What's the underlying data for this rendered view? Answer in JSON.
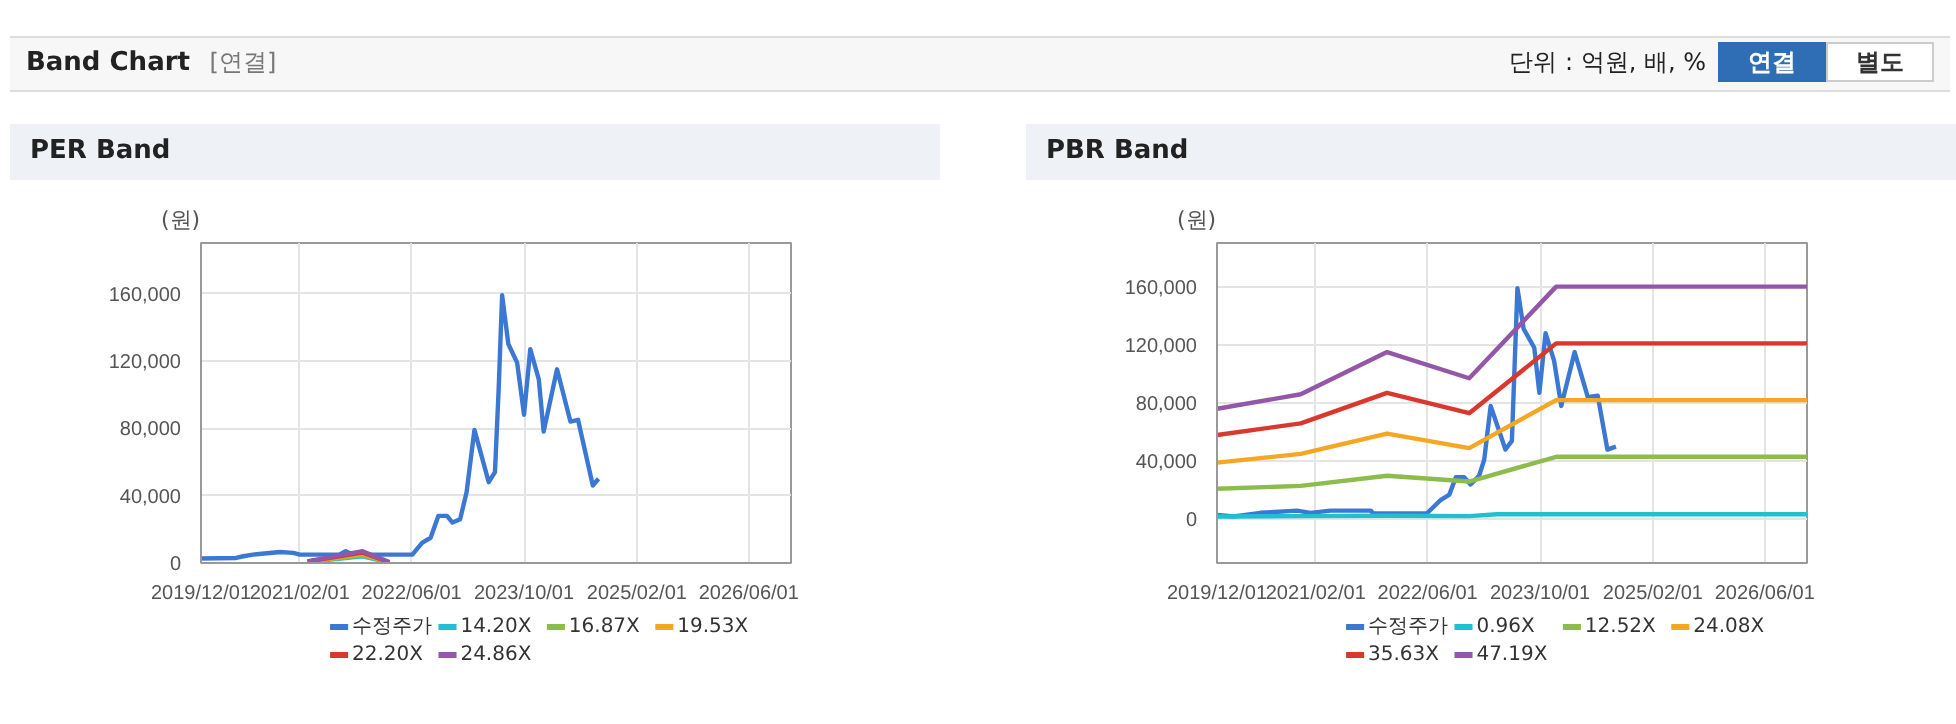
{
  "chart_data": [
    {
      "type": "other",
      "title": "Band Chart",
      "annotations": [
        "[연결]",
        "단위 : 억원, 배, %",
        "연결",
        "별도"
      ]
    },
    {
      "type": "line",
      "title": "PER Band",
      "ylabel": "(원)",
      "grid": true,
      "legend": "bottom",
      "marker": "none",
      "line_style": "solid",
      "xlim": [
        "2019-12-01",
        "2026-12-01"
      ],
      "xticks": [
        {
          "value": "2019-12-01",
          "label": "2019/12/01"
        },
        {
          "value": "2021-02-01",
          "label": "2021/02/01"
        },
        {
          "value": "2022-06-01",
          "label": "2022/06/01"
        },
        {
          "value": "2023-10-01",
          "label": "2023/10/01"
        },
        {
          "value": "2025-02-01",
          "label": "2025/02/01"
        },
        {
          "value": "2026-06-01",
          "label": "2026/06/01"
        }
      ],
      "ylim": [
        0,
        190000
      ],
      "yticks": [
        {
          "value": 0,
          "label": "0"
        },
        {
          "value": 40000,
          "label": "40,000"
        },
        {
          "value": 80000,
          "label": "80,000"
        },
        {
          "value": 120000,
          "label": "120,000"
        },
        {
          "value": 160000,
          "label": "160,000"
        }
      ],
      "series": [
        {
          "name": "수정주가",
          "color": "#3a78d4",
          "x": [
            "2019-12-01",
            "2020-05-01",
            "2020-06-01",
            "2020-07-13",
            "2020-11-07",
            "2021-01-04",
            "2021-02-01",
            "2021-07-22",
            "2021-08-19",
            "2021-09-19",
            "2022-06-04",
            "2022-07-16",
            "2022-08-22",
            "2022-09-25",
            "2022-11-01",
            "2022-11-25",
            "2022-12-28",
            "2023-01-25",
            "2023-02-28",
            "2023-05-01",
            "2023-05-28",
            "2023-06-13",
            "2023-06-28",
            "2023-07-25",
            "2023-09-01",
            "2023-10-01",
            "2023-10-28",
            "2023-12-04",
            "2023-12-25",
            "2024-02-21",
            "2024-04-19",
            "2024-05-22",
            "2024-07-25",
            "2024-08-19"
          ],
          "values": [
            2700,
            3000,
            4000,
            5000,
            6500,
            6000,
            5000,
            5000,
            7000,
            5000,
            5000,
            12000,
            15000,
            28000,
            28000,
            24000,
            26000,
            42000,
            79000,
            48000,
            54000,
            103000,
            159000,
            130000,
            119000,
            88000,
            127000,
            109000,
            78000,
            115000,
            84000,
            85000,
            46000,
            50000
          ]
        },
        {
          "name": "14.20X",
          "color": "#1fc0d0",
          "x": [
            "2021-03-07",
            "2021-10-31",
            "2022-02-24"
          ],
          "values": [
            600,
            4000,
            300
          ]
        },
        {
          "name": "16.87X",
          "color": "#8cbd4c",
          "x": [
            "2021-03-07",
            "2021-10-31",
            "2022-02-24"
          ],
          "values": [
            700,
            4700,
            350
          ]
        },
        {
          "name": "19.53X",
          "color": "#f5a623",
          "x": [
            "2021-03-07",
            "2021-10-31",
            "2022-02-24"
          ],
          "values": [
            800,
            5400,
            400
          ]
        },
        {
          "name": "22.20X",
          "color": "#d9382f",
          "x": [
            "2021-03-07",
            "2021-10-31",
            "2022-02-24"
          ],
          "values": [
            900,
            6200,
            450
          ]
        },
        {
          "name": "24.86X",
          "color": "#9457a8",
          "x": [
            "2021-03-07",
            "2021-10-31",
            "2022-02-24"
          ],
          "values": [
            1000,
            7000,
            500
          ]
        }
      ]
    },
    {
      "type": "line",
      "title": "PBR Band",
      "ylabel": "(원)",
      "grid": true,
      "legend": "bottom",
      "marker": "none",
      "line_style": "solid",
      "xlim": [
        "2019-12-01",
        "2026-12-01"
      ],
      "xticks": [
        {
          "value": "2019-12-01",
          "label": "2019/12/01"
        },
        {
          "value": "2021-02-01",
          "label": "2021/02/01"
        },
        {
          "value": "2022-06-01",
          "label": "2022/06/01"
        },
        {
          "value": "2023-10-01",
          "label": "2023/10/01"
        },
        {
          "value": "2025-02-01",
          "label": "2025/02/01"
        },
        {
          "value": "2026-06-01",
          "label": "2026/06/01"
        }
      ],
      "ylim": [
        -30000,
        190000
      ],
      "yticks": [
        {
          "value": 0,
          "label": "0"
        },
        {
          "value": 40000,
          "label": "40,000"
        },
        {
          "value": 80000,
          "label": "80,000"
        },
        {
          "value": 120000,
          "label": "120,000"
        },
        {
          "value": 160000,
          "label": "160,000"
        }
      ],
      "series": [
        {
          "name": "수정주가",
          "color": "#3a78d4",
          "x": [
            "2019-12-01",
            "2020-02-12",
            "2020-06-06",
            "2020-11-12",
            "2021-01-09",
            "2021-04-06",
            "2021-09-27",
            "2021-10-09",
            "2022-05-28",
            "2022-07-25",
            "2022-09-03",
            "2022-10-01",
            "2022-11-06",
            "2022-12-04",
            "2023-01-10",
            "2023-02-01",
            "2023-03-01",
            "2023-05-04",
            "2023-06-01",
            "2023-06-25",
            "2023-07-22",
            "2023-09-06",
            "2023-09-28",
            "2023-10-25",
            "2023-12-01",
            "2024-01-01",
            "2024-02-28",
            "2024-04-25",
            "2024-06-07",
            "2024-07-19",
            "2024-08-25"
          ],
          "values": [
            3000,
            2000,
            4500,
            6000,
            4500,
            6000,
            6000,
            4000,
            4000,
            13000,
            17000,
            29000,
            29000,
            24000,
            30000,
            41000,
            78000,
            48000,
            54000,
            159000,
            131000,
            118000,
            87000,
            128000,
            109000,
            78000,
            115000,
            84000,
            85000,
            48000,
            50000
          ]
        },
        {
          "name": "0.96X",
          "color": "#1fc0d0",
          "x": [
            "2019-12-01",
            "2020-11-28",
            "2021-12-07",
            "2022-11-28",
            "2023-03-28",
            "2023-12-10",
            "2026-12-01"
          ],
          "values": [
            2000,
            2200,
            2500,
            2200,
            3500,
            3500,
            3500
          ]
        },
        {
          "name": "12.52X",
          "color": "#8cbd4c",
          "x": [
            "2019-12-01",
            "2020-11-28",
            "2021-12-07",
            "2022-11-28",
            "2023-12-10",
            "2026-12-01"
          ],
          "values": [
            21000,
            23000,
            30000,
            26000,
            43000,
            43000
          ]
        },
        {
          "name": "24.08X",
          "color": "#f5a623",
          "x": [
            "2019-12-01",
            "2020-11-28",
            "2021-12-07",
            "2022-11-28",
            "2023-12-10",
            "2026-12-01"
          ],
          "values": [
            39000,
            45000,
            59000,
            49000,
            82000,
            82000
          ]
        },
        {
          "name": "35.63X",
          "color": "#d9382f",
          "x": [
            "2019-12-01",
            "2020-11-28",
            "2021-12-07",
            "2022-11-28",
            "2023-12-10",
            "2026-12-01"
          ],
          "values": [
            58000,
            66000,
            87000,
            73000,
            121000,
            121000
          ]
        },
        {
          "name": "47.19X",
          "color": "#9457a8",
          "x": [
            "2019-12-01",
            "2020-11-28",
            "2021-12-07",
            "2022-11-28",
            "2023-12-10",
            "2026-12-01"
          ],
          "values": [
            76000,
            86000,
            115000,
            97000,
            160000,
            160000
          ]
        }
      ]
    }
  ]
}
